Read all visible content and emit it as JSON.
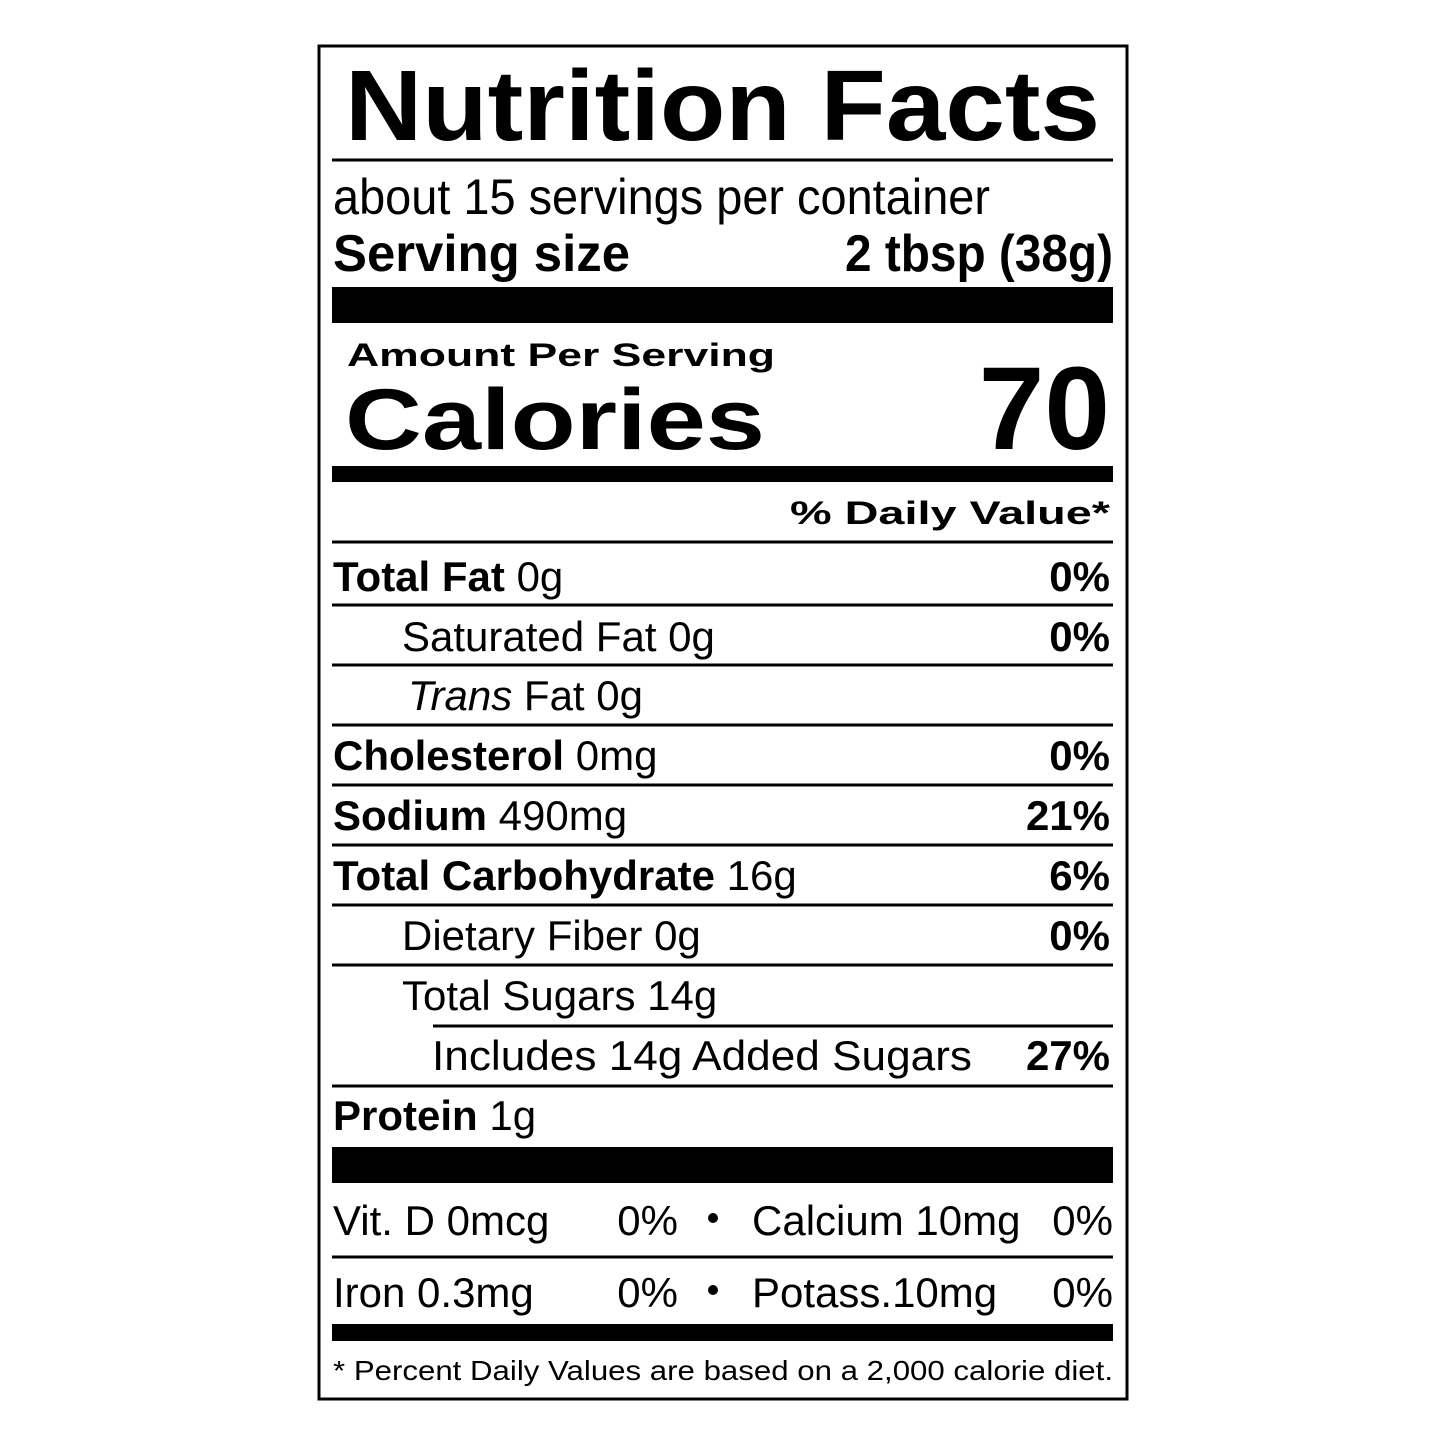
{
  "title": "Nutrition Facts",
  "servings_per_container": "about 15 servings per container",
  "serving_size": {
    "label": "Serving size",
    "value": "2 tbsp (38g)"
  },
  "amount_per_serving": "Amount Per Serving",
  "calories": {
    "label": "Calories",
    "value": "70"
  },
  "daily_value_header": "% Daily Value*",
  "nutrients": [
    {
      "name": "Total Fat",
      "amount": "0g",
      "dv": "0%"
    },
    {
      "name": "Saturated Fat",
      "amount": "0g",
      "dv": "0%"
    },
    {
      "name": [
        "Trans",
        "Fat"
      ],
      "amount": "0g"
    },
    {
      "name": "Cholesterol",
      "amount": "0mg",
      "dv": "0%"
    },
    {
      "name": "Sodium",
      "amount": "490mg",
      "dv": "21%"
    },
    {
      "name": "Total Carbohydrate",
      "amount": "16g",
      "dv": "6%"
    },
    {
      "name": "Dietary Fiber",
      "amount": "0g",
      "dv": "0%"
    },
    {
      "name": "Total Sugars",
      "amount": "14g"
    },
    {
      "name": "Includes 14g Added Sugars",
      "dv": "27%"
    },
    {
      "name": "Protein",
      "amount": "1g"
    }
  ],
  "vitamins": [
    [
      {
        "name": "Vit. D 0mcg",
        "dv": "0%"
      },
      {
        "name": "Calcium 10mg",
        "dv": "0%"
      }
    ],
    [
      {
        "name": "Iron 0.3mg",
        "dv": "0%"
      },
      {
        "name": "Potass.10mg",
        "dv": "0%"
      }
    ]
  ],
  "footnote": "* Percent Daily Values are based on a 2,000 calorie diet."
}
